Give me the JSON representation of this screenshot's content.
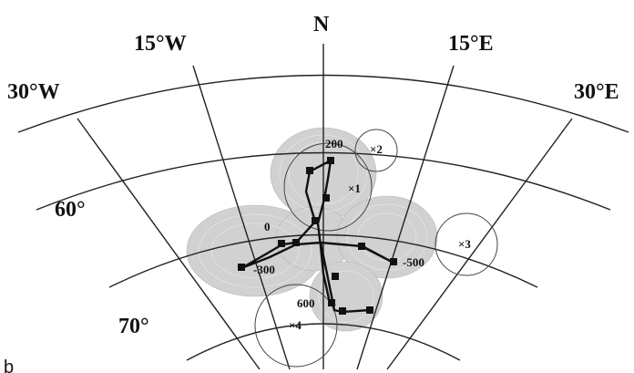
{
  "map": {
    "north_label": "N",
    "longitude_labels": [
      "15°W",
      "15°E",
      "30°W",
      "30°E"
    ],
    "latitude_labels": [
      "60°",
      "70°"
    ],
    "path_labels": [
      "200",
      "0",
      "-300",
      "-500",
      "600"
    ],
    "marker_labels": [
      "×1",
      "×2",
      "×3",
      "×4"
    ],
    "corner_label": "b"
  }
}
